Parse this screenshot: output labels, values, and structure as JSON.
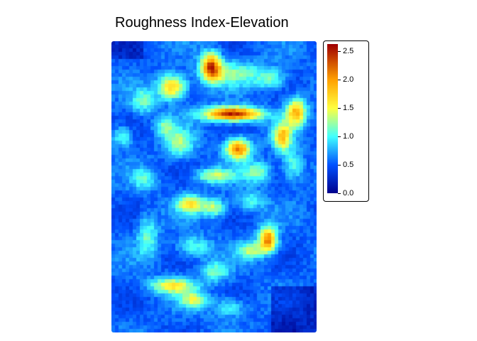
{
  "title": "Roughness Index-Elevation",
  "chart_data": {
    "type": "heatmap",
    "title": "Roughness Index-Elevation",
    "colorbar": {
      "range": [
        0,
        2.62
      ],
      "ticks": [
        "0.0",
        "0.5",
        "1.0",
        "1.5",
        "2.0",
        "2.5"
      ],
      "tick_values": [
        0,
        0.5,
        1.0,
        1.5,
        2.0,
        2.5
      ],
      "colors": [
        "#00008b",
        "#0050ff",
        "#40ffff",
        "#ffff40",
        "#ffa000",
        "#a00000"
      ],
      "placement": "right"
    }
  }
}
